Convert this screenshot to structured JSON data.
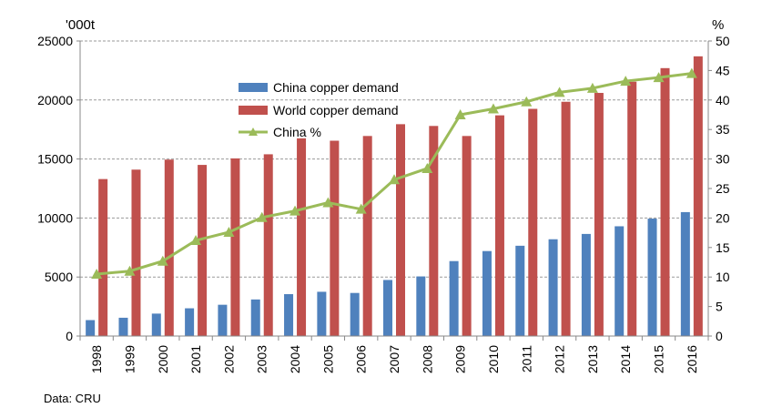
{
  "chart_data": {
    "type": "bar",
    "categories": [
      "1998",
      "1999",
      "2000",
      "2001",
      "2002",
      "2003",
      "2004",
      "2005",
      "2006",
      "2007",
      "2008",
      "2009",
      "2010",
      "2011",
      "2012",
      "2013",
      "2014",
      "2015",
      "2016"
    ],
    "series": [
      {
        "name": "China copper demand",
        "type": "bar",
        "axis": "left",
        "color": "#4f81bd",
        "values": [
          1350,
          1550,
          1900,
          2350,
          2650,
          3100,
          3550,
          3750,
          3650,
          4750,
          5050,
          6350,
          7200,
          7650,
          8200,
          8650,
          9300,
          9950,
          10500
        ]
      },
      {
        "name": "World copper demand",
        "type": "bar",
        "axis": "left",
        "color": "#c0504d",
        "values": [
          13300,
          14100,
          14950,
          14500,
          15050,
          15400,
          16750,
          16550,
          16950,
          17950,
          17800,
          16950,
          18700,
          19250,
          19850,
          20600,
          21550,
          22700,
          23700
        ]
      },
      {
        "name": "China %",
        "type": "line",
        "axis": "right",
        "color": "#9bbb59",
        "values": [
          10.5,
          11.0,
          12.7,
          16.2,
          17.6,
          20.1,
          21.2,
          22.6,
          21.5,
          26.5,
          28.4,
          37.5,
          38.5,
          39.7,
          41.3,
          42.0,
          43.2,
          43.8,
          44.5
        ]
      }
    ],
    "yunit_left": "'000t",
    "yunit_right": "%",
    "ylim_left": [
      0,
      25000
    ],
    "yticks_left": [
      "0",
      "5000",
      "10000",
      "15000",
      "20000",
      "25000"
    ],
    "ylim_right": [
      0,
      50
    ],
    "yticks_right": [
      "0",
      "5",
      "10",
      "15",
      "20",
      "25",
      "30",
      "35",
      "40",
      "45",
      "50"
    ],
    "grid": true,
    "legend_position": "top-left"
  },
  "source_note": "Data: CRU"
}
